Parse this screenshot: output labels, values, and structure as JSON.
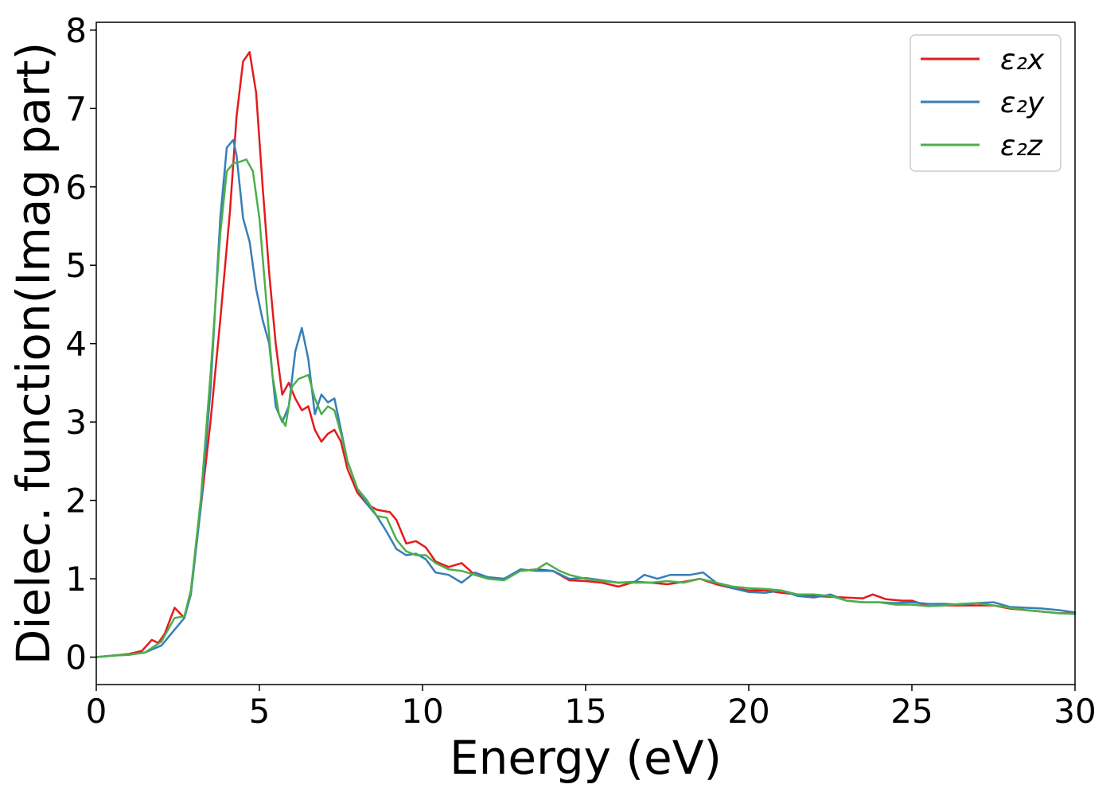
{
  "chart_data": {
    "type": "line",
    "xlabel": "Energy (eV)",
    "ylabel": "Dielec. function(Imag part)",
    "xlim": [
      0,
      30
    ],
    "ylim": [
      -0.35,
      8.1
    ],
    "xticks": [
      0,
      5,
      10,
      15,
      20,
      25,
      30
    ],
    "xtick_labels": [
      "0",
      "5",
      "10",
      "15",
      "20",
      "25",
      "30"
    ],
    "yticks": [
      0,
      1,
      2,
      3,
      4,
      5,
      6,
      7,
      8
    ],
    "ytick_labels": [
      "0",
      "1",
      "2",
      "3",
      "4",
      "5",
      "6",
      "7",
      "8"
    ],
    "grid": false,
    "legend_position": "top-right",
    "series": [
      {
        "name": "ε₂x",
        "color": "#e41a1c",
        "points": [
          [
            0,
            0
          ],
          [
            0.5,
            0.02
          ],
          [
            1.0,
            0.04
          ],
          [
            1.4,
            0.08
          ],
          [
            1.7,
            0.22
          ],
          [
            1.9,
            0.18
          ],
          [
            2.1,
            0.3
          ],
          [
            2.4,
            0.63
          ],
          [
            2.7,
            0.5
          ],
          [
            2.9,
            0.85
          ],
          [
            3.2,
            1.9
          ],
          [
            3.5,
            3.0
          ],
          [
            3.8,
            4.3
          ],
          [
            4.1,
            5.7
          ],
          [
            4.3,
            6.9
          ],
          [
            4.5,
            7.6
          ],
          [
            4.7,
            7.72
          ],
          [
            4.9,
            7.2
          ],
          [
            5.1,
            6.0
          ],
          [
            5.3,
            4.9
          ],
          [
            5.5,
            4.0
          ],
          [
            5.7,
            3.35
          ],
          [
            5.9,
            3.5
          ],
          [
            6.1,
            3.3
          ],
          [
            6.3,
            3.15
          ],
          [
            6.5,
            3.2
          ],
          [
            6.7,
            2.9
          ],
          [
            6.9,
            2.75
          ],
          [
            7.1,
            2.85
          ],
          [
            7.3,
            2.9
          ],
          [
            7.5,
            2.75
          ],
          [
            7.7,
            2.4
          ],
          [
            8.0,
            2.1
          ],
          [
            8.3,
            1.95
          ],
          [
            8.6,
            1.88
          ],
          [
            9.0,
            1.85
          ],
          [
            9.2,
            1.75
          ],
          [
            9.5,
            1.45
          ],
          [
            9.8,
            1.48
          ],
          [
            10.1,
            1.4
          ],
          [
            10.4,
            1.22
          ],
          [
            10.8,
            1.15
          ],
          [
            11.2,
            1.2
          ],
          [
            11.6,
            1.05
          ],
          [
            12.0,
            1.02
          ],
          [
            12.5,
            1.0
          ],
          [
            13.0,
            1.1
          ],
          [
            13.5,
            1.12
          ],
          [
            14.0,
            1.1
          ],
          [
            14.5,
            0.98
          ],
          [
            15.0,
            0.97
          ],
          [
            15.5,
            0.95
          ],
          [
            16.0,
            0.9
          ],
          [
            16.5,
            0.96
          ],
          [
            17.0,
            0.95
          ],
          [
            17.5,
            0.93
          ],
          [
            18.0,
            0.96
          ],
          [
            18.5,
            1.0
          ],
          [
            19.0,
            0.93
          ],
          [
            19.5,
            0.88
          ],
          [
            20.0,
            0.85
          ],
          [
            20.5,
            0.85
          ],
          [
            21.0,
            0.82
          ],
          [
            21.5,
            0.8
          ],
          [
            22.0,
            0.78
          ],
          [
            22.5,
            0.77
          ],
          [
            23.0,
            0.76
          ],
          [
            23.5,
            0.75
          ],
          [
            23.8,
            0.8
          ],
          [
            24.2,
            0.74
          ],
          [
            24.7,
            0.72
          ],
          [
            25.0,
            0.72
          ],
          [
            25.5,
            0.65
          ],
          [
            26.0,
            0.66
          ],
          [
            26.5,
            0.66
          ],
          [
            27.0,
            0.66
          ],
          [
            27.5,
            0.66
          ],
          [
            28.0,
            0.62
          ],
          [
            28.5,
            0.6
          ],
          [
            29.0,
            0.58
          ],
          [
            29.5,
            0.56
          ],
          [
            30.0,
            0.56
          ]
        ]
      },
      {
        "name": "ε₂y",
        "color": "#377eb8",
        "points": [
          [
            0,
            0
          ],
          [
            0.5,
            0.02
          ],
          [
            1.0,
            0.03
          ],
          [
            1.5,
            0.06
          ],
          [
            2.0,
            0.15
          ],
          [
            2.4,
            0.35
          ],
          [
            2.7,
            0.5
          ],
          [
            2.9,
            0.8
          ],
          [
            3.2,
            1.9
          ],
          [
            3.5,
            3.4
          ],
          [
            3.8,
            5.6
          ],
          [
            4.0,
            6.5
          ],
          [
            4.2,
            6.6
          ],
          [
            4.3,
            6.4
          ],
          [
            4.5,
            5.6
          ],
          [
            4.7,
            5.3
          ],
          [
            4.9,
            4.7
          ],
          [
            5.1,
            4.3
          ],
          [
            5.3,
            4.0
          ],
          [
            5.5,
            3.2
          ],
          [
            5.7,
            3.0
          ],
          [
            5.9,
            3.2
          ],
          [
            6.1,
            3.9
          ],
          [
            6.3,
            4.2
          ],
          [
            6.5,
            3.8
          ],
          [
            6.7,
            3.1
          ],
          [
            6.9,
            3.35
          ],
          [
            7.1,
            3.25
          ],
          [
            7.3,
            3.3
          ],
          [
            7.5,
            2.9
          ],
          [
            7.7,
            2.5
          ],
          [
            8.0,
            2.15
          ],
          [
            8.3,
            1.95
          ],
          [
            8.6,
            1.8
          ],
          [
            8.9,
            1.6
          ],
          [
            9.2,
            1.38
          ],
          [
            9.5,
            1.3
          ],
          [
            9.8,
            1.32
          ],
          [
            10.1,
            1.25
          ],
          [
            10.4,
            1.08
          ],
          [
            10.8,
            1.05
          ],
          [
            11.2,
            0.95
          ],
          [
            11.6,
            1.08
          ],
          [
            12.0,
            1.02
          ],
          [
            12.5,
            1.0
          ],
          [
            13.0,
            1.12
          ],
          [
            13.5,
            1.1
          ],
          [
            14.0,
            1.1
          ],
          [
            14.5,
            1.0
          ],
          [
            15.0,
            1.01
          ],
          [
            15.5,
            0.98
          ],
          [
            16.0,
            0.95
          ],
          [
            16.5,
            0.96
          ],
          [
            16.8,
            1.05
          ],
          [
            17.2,
            1.0
          ],
          [
            17.6,
            1.05
          ],
          [
            18.2,
            1.05
          ],
          [
            18.6,
            1.08
          ],
          [
            19.0,
            0.95
          ],
          [
            19.5,
            0.88
          ],
          [
            20.0,
            0.83
          ],
          [
            20.5,
            0.82
          ],
          [
            21.0,
            0.85
          ],
          [
            21.5,
            0.78
          ],
          [
            22.0,
            0.76
          ],
          [
            22.5,
            0.8
          ],
          [
            23.0,
            0.72
          ],
          [
            23.5,
            0.7
          ],
          [
            24.0,
            0.7
          ],
          [
            24.5,
            0.69
          ],
          [
            25.0,
            0.7
          ],
          [
            25.5,
            0.68
          ],
          [
            26.0,
            0.68
          ],
          [
            26.5,
            0.67
          ],
          [
            27.0,
            0.69
          ],
          [
            27.5,
            0.7
          ],
          [
            28.0,
            0.64
          ],
          [
            28.5,
            0.63
          ],
          [
            29.0,
            0.62
          ],
          [
            29.5,
            0.6
          ],
          [
            30.0,
            0.57
          ]
        ]
      },
      {
        "name": "ε₂z",
        "color": "#4daf4a",
        "points": [
          [
            0,
            0
          ],
          [
            0.5,
            0.02
          ],
          [
            1.0,
            0.03
          ],
          [
            1.5,
            0.06
          ],
          [
            2.0,
            0.2
          ],
          [
            2.4,
            0.5
          ],
          [
            2.7,
            0.52
          ],
          [
            2.9,
            0.85
          ],
          [
            3.2,
            2.0
          ],
          [
            3.5,
            3.6
          ],
          [
            3.8,
            5.4
          ],
          [
            4.0,
            6.2
          ],
          [
            4.2,
            6.3
          ],
          [
            4.4,
            6.32
          ],
          [
            4.6,
            6.35
          ],
          [
            4.8,
            6.2
          ],
          [
            5.0,
            5.6
          ],
          [
            5.2,
            4.6
          ],
          [
            5.4,
            3.6
          ],
          [
            5.6,
            3.1
          ],
          [
            5.8,
            2.95
          ],
          [
            6.0,
            3.45
          ],
          [
            6.2,
            3.55
          ],
          [
            6.5,
            3.6
          ],
          [
            6.7,
            3.3
          ],
          [
            6.9,
            3.1
          ],
          [
            7.1,
            3.2
          ],
          [
            7.3,
            3.15
          ],
          [
            7.5,
            2.85
          ],
          [
            7.7,
            2.5
          ],
          [
            8.0,
            2.15
          ],
          [
            8.3,
            2.0
          ],
          [
            8.6,
            1.8
          ],
          [
            8.9,
            1.78
          ],
          [
            9.2,
            1.5
          ],
          [
            9.5,
            1.35
          ],
          [
            9.8,
            1.3
          ],
          [
            10.1,
            1.3
          ],
          [
            10.4,
            1.2
          ],
          [
            10.8,
            1.12
          ],
          [
            11.2,
            1.1
          ],
          [
            11.6,
            1.05
          ],
          [
            12.0,
            1.0
          ],
          [
            12.5,
            0.98
          ],
          [
            13.0,
            1.1
          ],
          [
            13.5,
            1.12
          ],
          [
            13.8,
            1.2
          ],
          [
            14.2,
            1.1
          ],
          [
            14.5,
            1.05
          ],
          [
            15.0,
            1.0
          ],
          [
            15.5,
            0.97
          ],
          [
            16.0,
            0.95
          ],
          [
            16.5,
            0.95
          ],
          [
            17.0,
            0.95
          ],
          [
            17.5,
            0.97
          ],
          [
            18.0,
            0.95
          ],
          [
            18.5,
            1.0
          ],
          [
            19.0,
            0.95
          ],
          [
            19.5,
            0.9
          ],
          [
            20.0,
            0.88
          ],
          [
            20.5,
            0.87
          ],
          [
            21.0,
            0.85
          ],
          [
            21.5,
            0.8
          ],
          [
            22.0,
            0.8
          ],
          [
            22.5,
            0.78
          ],
          [
            23.0,
            0.72
          ],
          [
            23.5,
            0.7
          ],
          [
            24.0,
            0.7
          ],
          [
            24.5,
            0.67
          ],
          [
            25.0,
            0.67
          ],
          [
            25.5,
            0.65
          ],
          [
            26.0,
            0.66
          ],
          [
            26.5,
            0.68
          ],
          [
            27.0,
            0.69
          ],
          [
            27.5,
            0.66
          ],
          [
            28.0,
            0.63
          ],
          [
            28.5,
            0.6
          ],
          [
            29.0,
            0.58
          ],
          [
            29.5,
            0.56
          ],
          [
            30.0,
            0.55
          ]
        ]
      }
    ]
  }
}
